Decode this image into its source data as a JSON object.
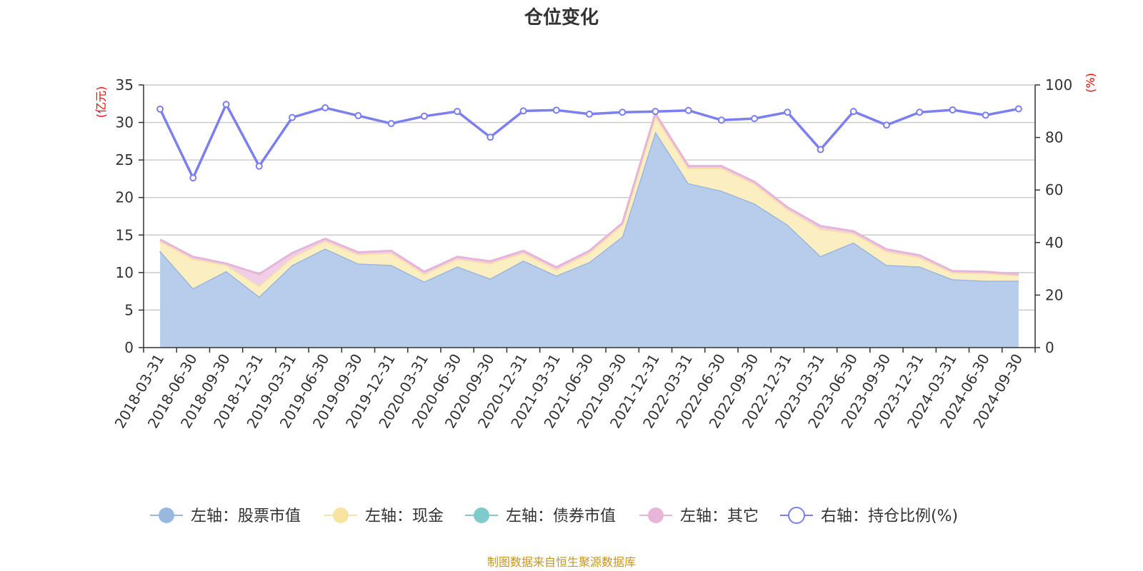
{
  "chart_data": {
    "type": "area",
    "title": "仓位变化",
    "left_axis": {
      "unit": "(亿元)",
      "ylim": [
        0,
        35
      ],
      "ticks": [
        0,
        5,
        10,
        15,
        20,
        25,
        30,
        35
      ]
    },
    "right_axis": {
      "unit": "(%)",
      "ylim": [
        0,
        100
      ],
      "ticks": [
        0,
        20,
        40,
        60,
        80,
        100
      ]
    },
    "grid": true,
    "legend_position": "bottom",
    "categories": [
      "2018-03-31",
      "2018-06-30",
      "2018-09-30",
      "2018-12-31",
      "2019-03-31",
      "2019-06-30",
      "2019-09-30",
      "2019-12-31",
      "2020-03-31",
      "2020-06-30",
      "2020-09-30",
      "2020-12-31",
      "2021-03-31",
      "2021-06-30",
      "2021-09-30",
      "2021-12-31",
      "2022-03-31",
      "2022-06-30",
      "2022-09-30",
      "2022-12-31",
      "2023-03-31",
      "2023-06-30",
      "2023-09-30",
      "2023-12-31",
      "2024-03-31",
      "2024-06-30",
      "2024-09-30"
    ],
    "series": [
      {
        "name": "左轴：股票市值",
        "axis": "left",
        "stack": true,
        "color": "#9ab7e0",
        "fill": "#b8cdeb",
        "values": [
          12.9,
          7.9,
          10.2,
          6.8,
          11.0,
          13.2,
          11.2,
          11.0,
          8.8,
          10.8,
          9.2,
          11.6,
          9.6,
          11.4,
          14.8,
          28.8,
          21.9,
          20.9,
          19.2,
          16.4,
          12.2,
          14.0,
          11.0,
          10.8,
          9.1,
          8.9,
          8.9
        ]
      },
      {
        "name": "左轴：现金",
        "axis": "left",
        "stack": true,
        "color": "#f8e3a0",
        "fill": "#fbeec0",
        "values": [
          1.3,
          3.9,
          0.8,
          1.4,
          1.0,
          1.0,
          1.2,
          1.6,
          1.0,
          1.0,
          2.0,
          1.0,
          0.8,
          1.2,
          1.6,
          2.0,
          2.0,
          3.0,
          2.6,
          2.0,
          3.6,
          1.2,
          1.8,
          1.2,
          0.9,
          1.0,
          0.7
        ]
      },
      {
        "name": "左轴：债券市值",
        "axis": "left",
        "stack": true,
        "color": "#7fcbcc",
        "fill": "#a9dcdc",
        "values": [
          0,
          0,
          0,
          0,
          0,
          0,
          0,
          0,
          0,
          0,
          0,
          0,
          0,
          0,
          0,
          0,
          0,
          0,
          0,
          0,
          0,
          0,
          0,
          0,
          0,
          0,
          0
        ]
      },
      {
        "name": "左轴：其它",
        "axis": "left",
        "stack": true,
        "color": "#e6b5d8",
        "fill": "#f0cfe6",
        "values": [
          0.2,
          0.3,
          0.2,
          1.6,
          0.6,
          0.3,
          0.3,
          0.3,
          0.3,
          0.3,
          0.3,
          0.3,
          0.3,
          0.3,
          0.2,
          0.4,
          0.3,
          0.3,
          0.3,
          0.3,
          0.4,
          0.3,
          0.3,
          0.3,
          0.2,
          0.2,
          0.2
        ]
      },
      {
        "name": "右轴：持仓比例(%)",
        "axis": "right",
        "type": "line",
        "color": "#7b7ff0",
        "values": [
          90.8,
          64.6,
          92.6,
          69.1,
          87.6,
          91.3,
          88.3,
          85.3,
          88.1,
          89.9,
          80.1,
          90.1,
          90.4,
          88.9,
          89.6,
          89.9,
          90.3,
          86.6,
          87.2,
          89.6,
          75.4,
          89.9,
          84.7,
          89.6,
          90.5,
          88.5,
          90.9
        ]
      }
    ]
  },
  "source": "制图数据来自恒生聚源数据库",
  "colors": {
    "axis": "#333333",
    "grid": "#cccccc",
    "unit_text": "#ff0000",
    "source_text": "#c8961e"
  }
}
